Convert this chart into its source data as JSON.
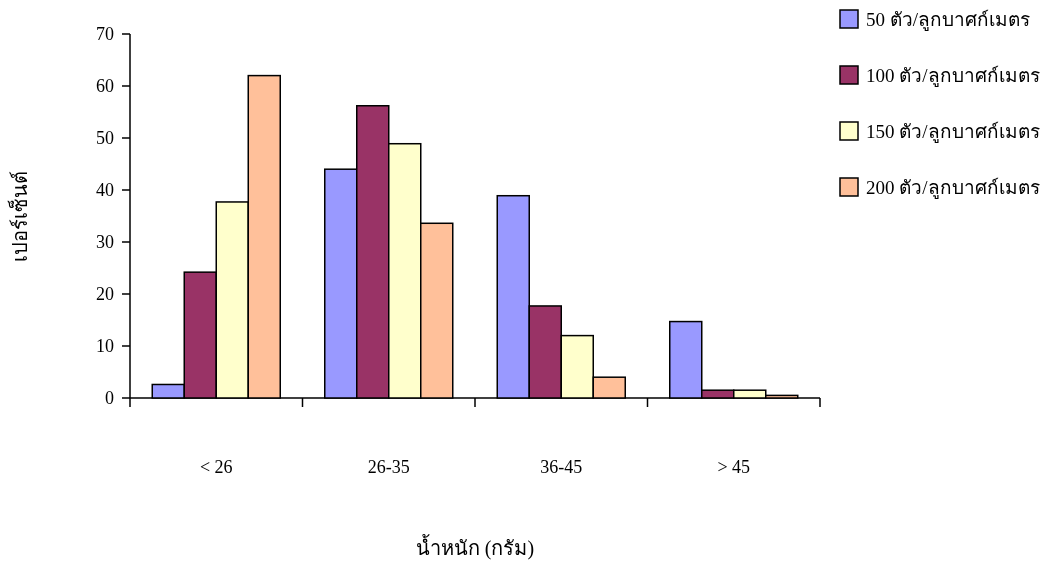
{
  "chart_data": {
    "type": "bar",
    "xlabel": "น้ำหนัก (กรัม)",
    "ylabel": "เปอร์เซ็นต์",
    "categories": [
      "< 26",
      "26-35",
      "36-45",
      "> 45"
    ],
    "series": [
      {
        "name": "50 ตัว/ลูกบาศก์เมตร",
        "color": "#9999ff",
        "values": [
          2.6,
          44,
          38.9,
          14.7
        ]
      },
      {
        "name": "100 ตัว/ลูกบาศก์เมตร",
        "color": "#993366",
        "values": [
          24.2,
          56.2,
          17.7,
          1.5
        ]
      },
      {
        "name": "150 ตัว/ลูกบาศก์เมตร",
        "color": "#ffffcc",
        "values": [
          37.7,
          48.9,
          12,
          1.5
        ]
      },
      {
        "name": "200 ตัว/ลูกบาศก์เมตร",
        "color": "#ffc09a",
        "values": [
          62,
          33.6,
          4,
          0.5
        ]
      }
    ],
    "ylim": [
      0,
      70
    ],
    "yticks": [
      0,
      10,
      20,
      30,
      40,
      50,
      60,
      70
    ],
    "legend": "top right",
    "grid": false
  }
}
